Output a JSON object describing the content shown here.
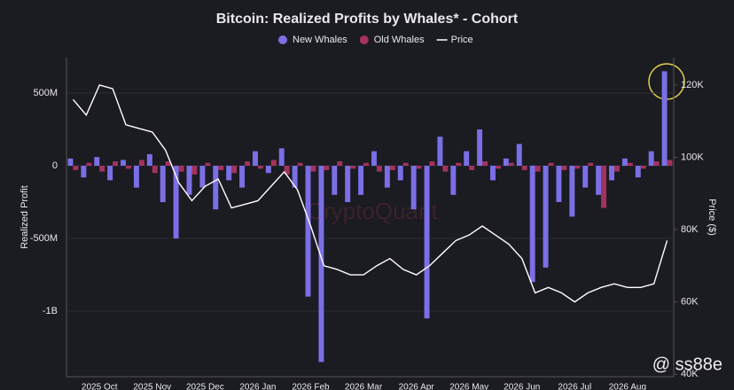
{
  "chart_data": {
    "type": "bar",
    "title": "Bitcoin: Realized Profits by Whales* - Cohort",
    "y_label": "Realized Profit",
    "y2_label": "Price ($)",
    "categories": [
      null,
      null,
      "2025 Oct",
      null,
      null,
      null,
      "2025 Nov",
      null,
      null,
      null,
      "2025 Dec",
      null,
      null,
      null,
      "2026 Jan",
      null,
      null,
      null,
      "2026 Feb",
      null,
      null,
      null,
      "2026 Mar",
      null,
      null,
      null,
      "2026 Apr",
      null,
      null,
      null,
      "2026 May",
      null,
      null,
      null,
      "2026 Jun",
      null,
      null,
      null,
      "2026 Jul",
      null,
      null,
      null,
      "2026 Aug",
      null,
      null,
      null
    ],
    "series": [
      {
        "name": "New Whales",
        "type": "bar",
        "color": "#7b6fe6",
        "values": [
          50000000,
          -80000000,
          60000000,
          -100000000,
          40000000,
          -150000000,
          80000000,
          -250000000,
          -500000000,
          -200000000,
          -150000000,
          -300000000,
          -100000000,
          -150000000,
          100000000,
          -50000000,
          120000000,
          -150000000,
          -900000000,
          -1350000000,
          -200000000,
          -250000000,
          -200000000,
          100000000,
          -150000000,
          -100000000,
          -300000000,
          -1050000000,
          200000000,
          -200000000,
          100000000,
          250000000,
          -100000000,
          50000000,
          150000000,
          -800000000,
          -700000000,
          -250000000,
          -350000000,
          -150000000,
          -200000000,
          -100000000,
          50000000,
          -80000000,
          100000000,
          650000000
        ]
      },
      {
        "name": "Old Whales",
        "type": "bar",
        "color": "#a3325e",
        "values": [
          -30000000,
          20000000,
          -40000000,
          30000000,
          -20000000,
          40000000,
          -50000000,
          30000000,
          -40000000,
          -60000000,
          20000000,
          -30000000,
          -50000000,
          30000000,
          -20000000,
          40000000,
          -60000000,
          20000000,
          -40000000,
          -30000000,
          30000000,
          -20000000,
          20000000,
          -40000000,
          -30000000,
          20000000,
          -20000000,
          30000000,
          -40000000,
          20000000,
          -30000000,
          30000000,
          -20000000,
          20000000,
          -30000000,
          -40000000,
          20000000,
          -30000000,
          -20000000,
          20000000,
          -290000000,
          -40000000,
          20000000,
          -20000000,
          30000000,
          40000000
        ]
      },
      {
        "name": "Price",
        "type": "line",
        "axis": "y2",
        "color": "#ffffff",
        "values": [
          116000,
          111700,
          120000,
          119000,
          109000,
          108000,
          107000,
          102000,
          93000,
          88000,
          92000,
          94000,
          86000,
          87000,
          88000,
          92000,
          96000,
          91000,
          81000,
          70000,
          69000,
          67500,
          67500,
          70000,
          72000,
          69000,
          67500,
          70000,
          73500,
          77000,
          78500,
          81000,
          78500,
          76000,
          72000,
          62500,
          64000,
          62500,
          60000,
          62500,
          64000,
          65000,
          64000,
          64000,
          65000,
          77000
        ]
      }
    ],
    "ylim": [
      -1451000000,
      744000000
    ],
    "yticks": [
      {
        "value": 500000000,
        "label": "500M"
      },
      0,
      {
        "value": -500000000,
        "label": "-500M"
      },
      {
        "value": -1000000000,
        "label": "-1B"
      }
    ],
    "y2lim": [
      39300,
      127600
    ],
    "y2ticks": [
      {
        "value": 120000,
        "label": "120K"
      },
      {
        "value": 100000,
        "label": "100K"
      },
      {
        "value": 80000,
        "label": "80K"
      },
      {
        "value": 60000,
        "label": "60K"
      },
      {
        "value": 40000,
        "label": "40K"
      }
    ],
    "grid": true,
    "legend": "top"
  },
  "watermark": "CryptoQuant",
  "credit": "@ ss88e"
}
